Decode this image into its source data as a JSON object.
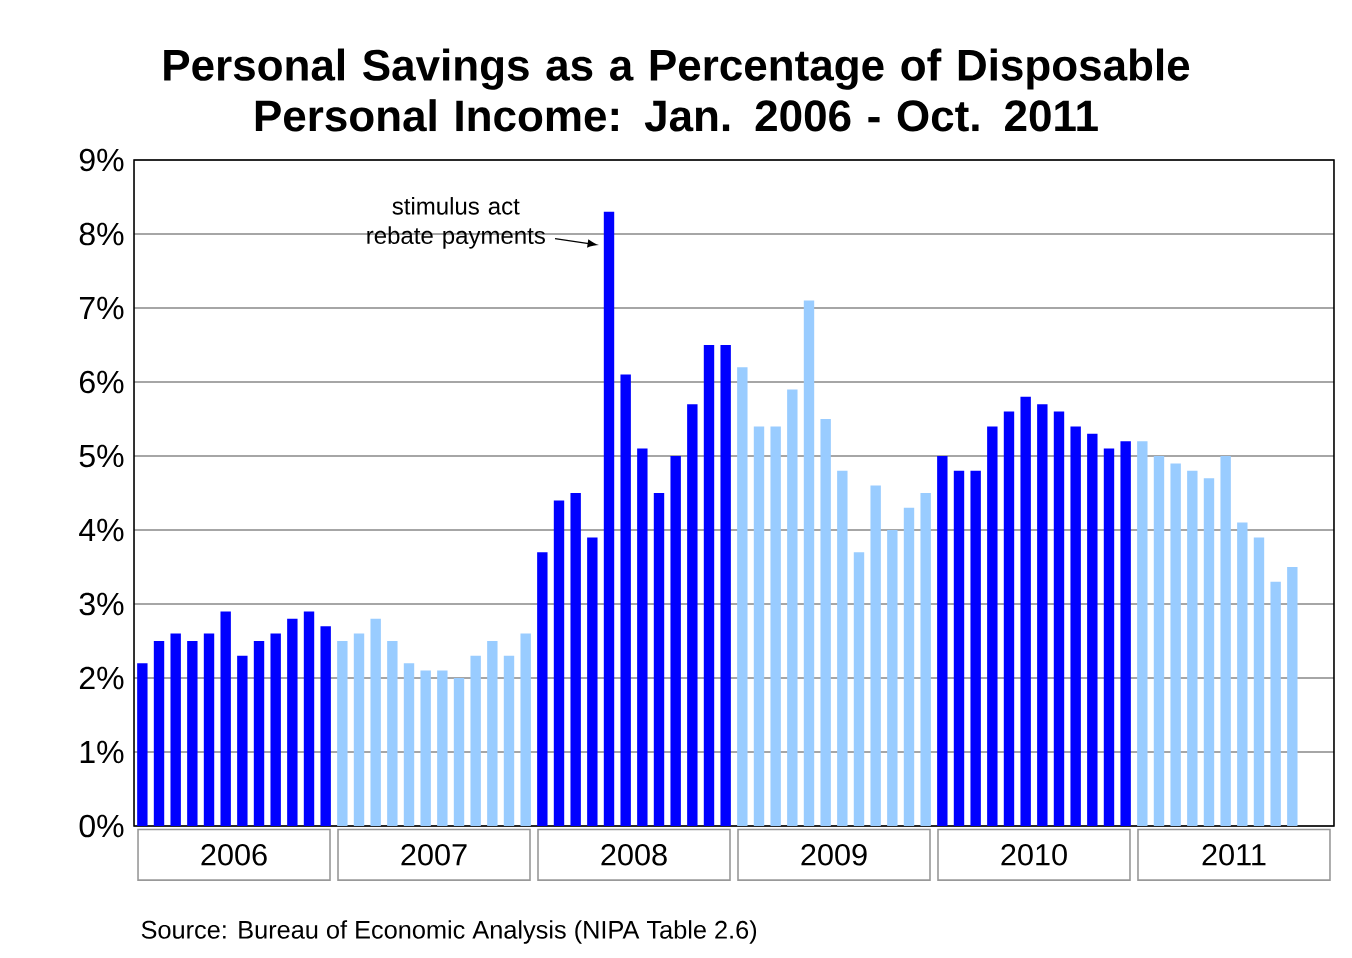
{
  "chart_data": {
    "type": "bar",
    "title": "Personal Savings as a Percentage of Disposable Personal Income: Jan. 2006 - Oct. 2011",
    "x": [
      "2006-01",
      "2006-02",
      "2006-03",
      "2006-04",
      "2006-05",
      "2006-06",
      "2006-07",
      "2006-08",
      "2006-09",
      "2006-10",
      "2006-11",
      "2006-12",
      "2007-01",
      "2007-02",
      "2007-03",
      "2007-04",
      "2007-05",
      "2007-06",
      "2007-07",
      "2007-08",
      "2007-09",
      "2007-10",
      "2007-11",
      "2007-12",
      "2008-01",
      "2008-02",
      "2008-03",
      "2008-04",
      "2008-05",
      "2008-06",
      "2008-07",
      "2008-08",
      "2008-09",
      "2008-10",
      "2008-11",
      "2008-12",
      "2009-01",
      "2009-02",
      "2009-03",
      "2009-04",
      "2009-05",
      "2009-06",
      "2009-07",
      "2009-08",
      "2009-09",
      "2009-10",
      "2009-11",
      "2009-12",
      "2010-01",
      "2010-02",
      "2010-03",
      "2010-04",
      "2010-05",
      "2010-06",
      "2010-07",
      "2010-08",
      "2010-09",
      "2010-10",
      "2010-11",
      "2010-12",
      "2011-01",
      "2011-02",
      "2011-03",
      "2011-04",
      "2011-05",
      "2011-06",
      "2011-07",
      "2011-08",
      "2011-09",
      "2011-10"
    ],
    "values": [
      2.2,
      2.5,
      2.6,
      2.5,
      2.6,
      2.9,
      2.3,
      2.5,
      2.6,
      2.8,
      2.9,
      2.7,
      2.5,
      2.6,
      2.8,
      2.5,
      2.2,
      2.1,
      2.1,
      2.0,
      2.3,
      2.5,
      2.3,
      2.6,
      3.7,
      4.4,
      4.5,
      3.9,
      8.3,
      6.1,
      5.1,
      4.5,
      5.0,
      5.7,
      6.5,
      6.5,
      6.2,
      5.4,
      5.4,
      5.9,
      7.1,
      5.5,
      4.8,
      3.7,
      4.6,
      4.0,
      4.3,
      4.5,
      5.0,
      4.8,
      4.8,
      5.4,
      5.6,
      5.8,
      5.7,
      5.6,
      5.4,
      5.3,
      5.1,
      5.2,
      5.2,
      5.0,
      4.9,
      4.8,
      4.7,
      5.0,
      4.1,
      3.9,
      3.3,
      3.5
    ],
    "colors": [
      "#0000ff",
      "#0000ff",
      "#0000ff",
      "#0000ff",
      "#0000ff",
      "#0000ff",
      "#0000ff",
      "#0000ff",
      "#0000ff",
      "#0000ff",
      "#0000ff",
      "#0000ff",
      "#99ccff",
      "#99ccff",
      "#99ccff",
      "#99ccff",
      "#99ccff",
      "#99ccff",
      "#99ccff",
      "#99ccff",
      "#99ccff",
      "#99ccff",
      "#99ccff",
      "#99ccff",
      "#0000ff",
      "#0000ff",
      "#0000ff",
      "#0000ff",
      "#0000ff",
      "#0000ff",
      "#0000ff",
      "#0000ff",
      "#0000ff",
      "#0000ff",
      "#0000ff",
      "#0000ff",
      "#99ccff",
      "#99ccff",
      "#99ccff",
      "#99ccff",
      "#99ccff",
      "#99ccff",
      "#99ccff",
      "#99ccff",
      "#99ccff",
      "#99ccff",
      "#99ccff",
      "#99ccff",
      "#0000ff",
      "#0000ff",
      "#0000ff",
      "#0000ff",
      "#0000ff",
      "#0000ff",
      "#0000ff",
      "#0000ff",
      "#0000ff",
      "#0000ff",
      "#0000ff",
      "#0000ff",
      "#99ccff",
      "#99ccff",
      "#99ccff",
      "#99ccff",
      "#99ccff",
      "#99ccff",
      "#99ccff",
      "#99ccff",
      "#99ccff",
      "#99ccff"
    ],
    "xlim": [
      "2005-12-16",
      "2011-12-16"
    ],
    "xticks": [
      {
        "value": "2006-06-16",
        "label": "2006"
      },
      {
        "value": "2007-06-16",
        "label": "2007"
      },
      {
        "value": "2008-06-16",
        "label": "2008"
      },
      {
        "value": "2009-06-16",
        "label": "2009"
      },
      {
        "value": "2010-06-16",
        "label": "2010"
      },
      {
        "value": "2011-06-16",
        "label": "2011"
      }
    ],
    "ylim": [
      0,
      9
    ],
    "yticks": [
      {
        "value": 0,
        "label": "0%"
      },
      {
        "value": 1,
        "label": "1%"
      },
      {
        "value": 2,
        "label": "2%"
      },
      {
        "value": 3,
        "label": "3%"
      },
      {
        "value": 4,
        "label": "4%"
      },
      {
        "value": 5,
        "label": "5%"
      },
      {
        "value": 6,
        "label": "6%"
      },
      {
        "value": 7,
        "label": "7%"
      },
      {
        "value": 8,
        "label": "8%"
      },
      {
        "value": 9,
        "label": "9%"
      }
    ],
    "grid": "y",
    "annotations": [
      {
        "text": "stimulus act rebate payments",
        "x": "2008-05",
        "y": 8.3
      },
      "Source: Bureau of Economic Analysis (NIPA Table 2.6)"
    ]
  }
}
